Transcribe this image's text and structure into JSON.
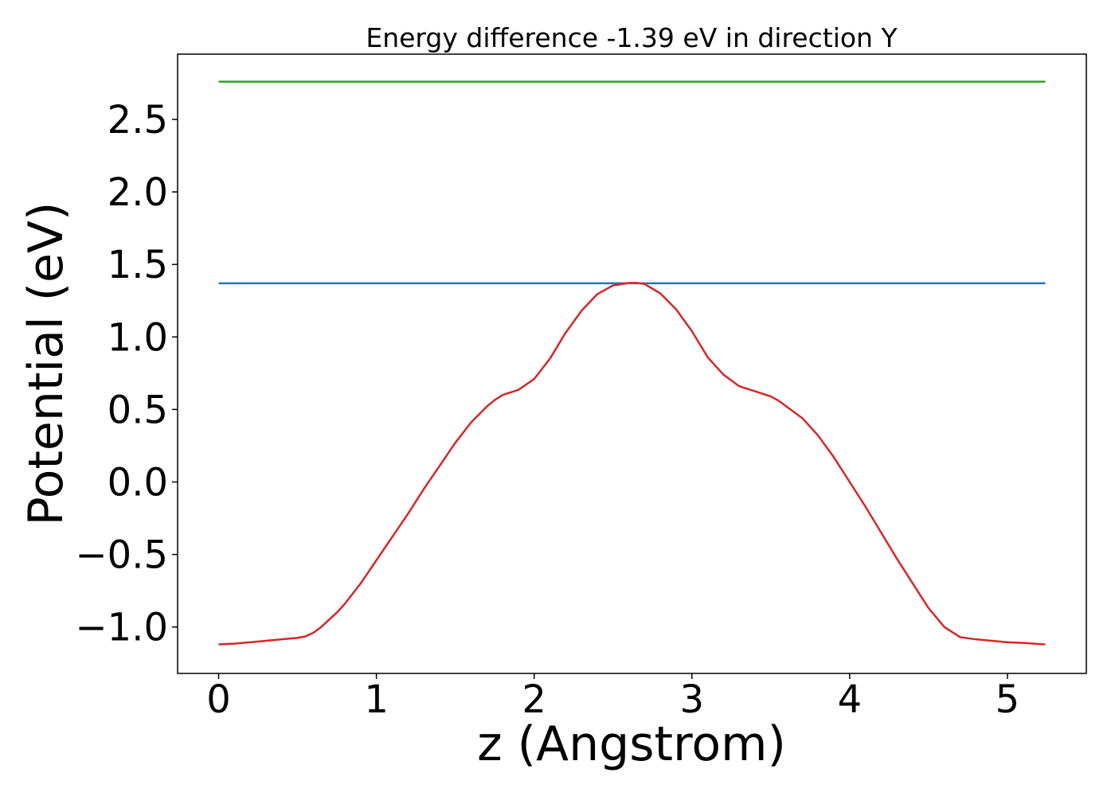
{
  "chart_data": {
    "type": "line",
    "title": "Energy difference -1.39 eV in direction Y",
    "xlabel": "z (Angstrom)",
    "ylabel": "Potential (eV)",
    "xlim": [
      -0.26,
      5.5
    ],
    "ylim": [
      -1.32,
      2.95
    ],
    "xticks": [
      0,
      1,
      2,
      3,
      4,
      5
    ],
    "xtick_labels": [
      "0",
      "1",
      "2",
      "3",
      "4",
      "5"
    ],
    "yticks": [
      -1.0,
      -0.5,
      0.0,
      0.5,
      1.0,
      1.5,
      2.0,
      2.5
    ],
    "ytick_labels": [
      "−1.0",
      "−0.5",
      "0.0",
      "0.5",
      "1.0",
      "1.5",
      "2.0",
      "2.5"
    ],
    "grid": false,
    "series": [
      {
        "color": "#2ca02c",
        "x": [
          0,
          5.24
        ],
        "y": [
          2.76,
          2.76
        ]
      },
      {
        "color": "#1f77b4",
        "x": [
          0,
          5.24
        ],
        "y": [
          1.37,
          1.37
        ]
      },
      {
        "color": "#d62728",
        "x": [
          0,
          0.1,
          0.2,
          0.3,
          0.4,
          0.5,
          0.55,
          0.6,
          0.65,
          0.7,
          0.75,
          0.8,
          0.9,
          1.0,
          1.1,
          1.2,
          1.3,
          1.4,
          1.5,
          1.6,
          1.7,
          1.75,
          1.8,
          1.9,
          2.0,
          2.1,
          2.2,
          2.3,
          2.4,
          2.5,
          2.6,
          2.65,
          2.7,
          2.8,
          2.9,
          3.0,
          3.1,
          3.2,
          3.3,
          3.4,
          3.5,
          3.55,
          3.6,
          3.7,
          3.8,
          3.9,
          4.0,
          4.1,
          4.2,
          4.3,
          4.4,
          4.5,
          4.6,
          4.7,
          4.8,
          4.9,
          5.0,
          5.1,
          5.24
        ],
        "y": [
          -1.12,
          -1.115,
          -1.105,
          -1.095,
          -1.085,
          -1.075,
          -1.065,
          -1.04,
          -1.0,
          -0.95,
          -0.9,
          -0.84,
          -0.7,
          -0.54,
          -0.38,
          -0.22,
          -0.05,
          0.11,
          0.27,
          0.41,
          0.52,
          0.565,
          0.6,
          0.635,
          0.71,
          0.85,
          1.03,
          1.18,
          1.295,
          1.355,
          1.372,
          1.373,
          1.365,
          1.3,
          1.19,
          1.04,
          0.86,
          0.74,
          0.66,
          0.625,
          0.59,
          0.56,
          0.52,
          0.44,
          0.32,
          0.17,
          0.0,
          -0.17,
          -0.35,
          -0.53,
          -0.7,
          -0.87,
          -1.0,
          -1.07,
          -1.085,
          -1.095,
          -1.105,
          -1.11,
          -1.12
        ]
      }
    ]
  }
}
